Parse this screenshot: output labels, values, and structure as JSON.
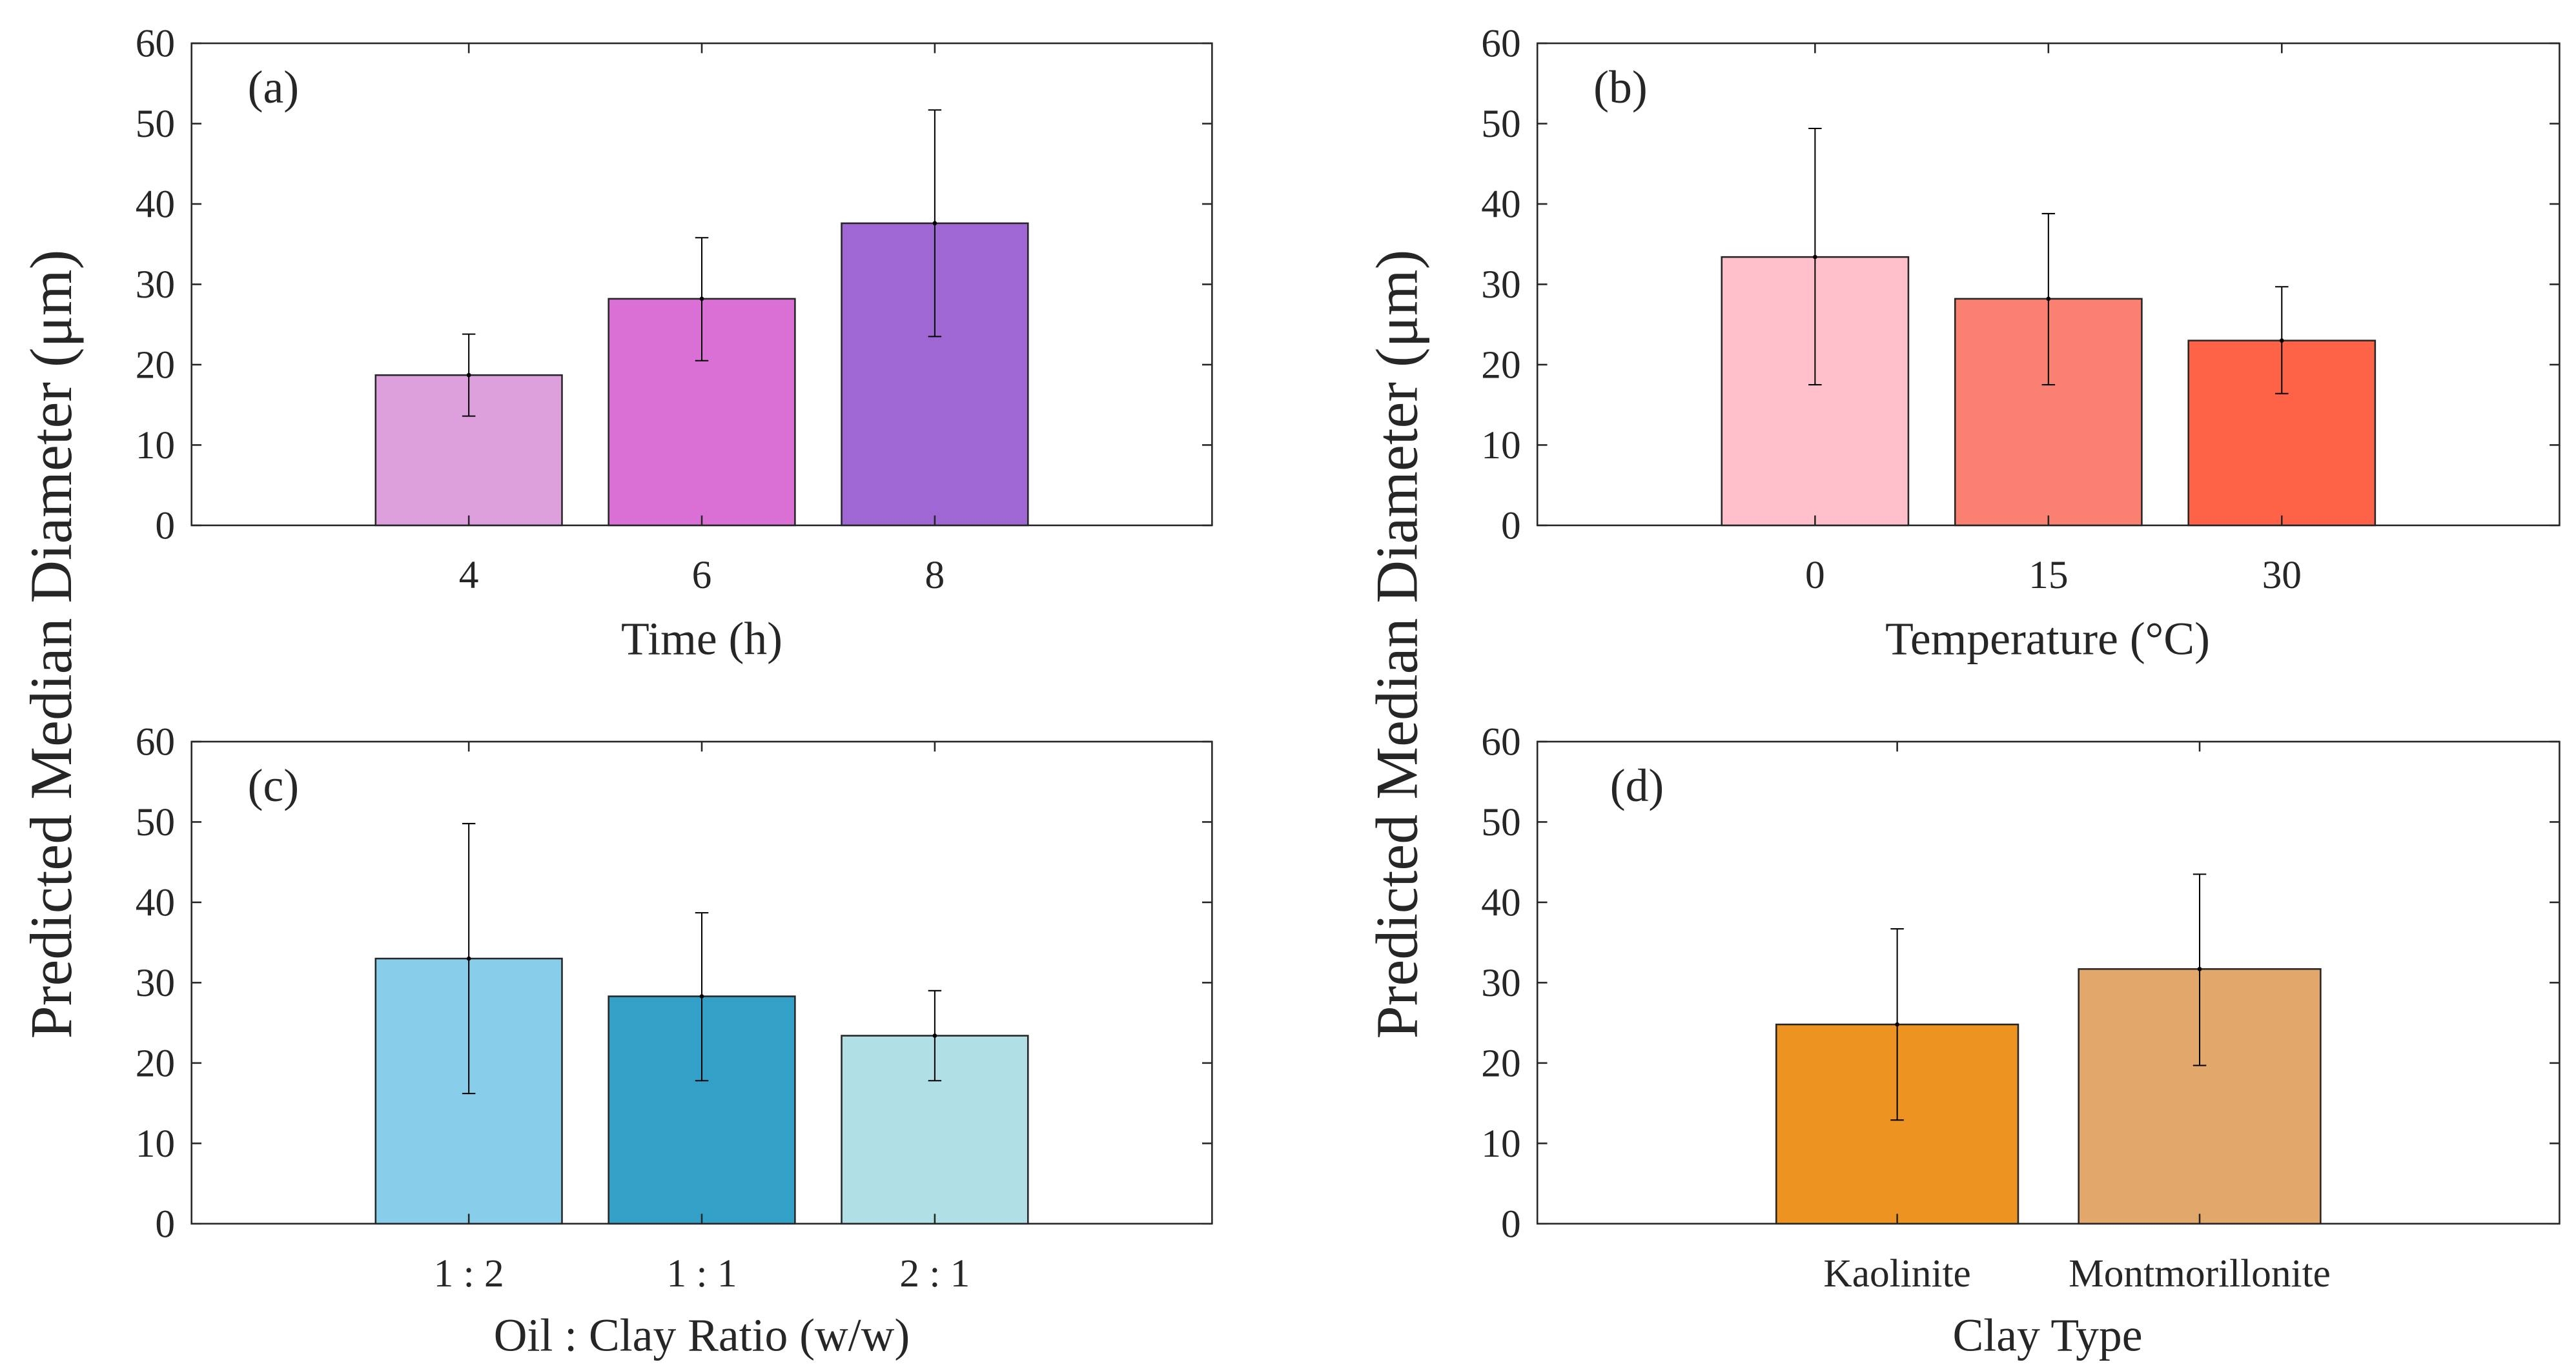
{
  "ylabel": "Predicted Median Diameter (μm)",
  "chart_data": [
    {
      "type": "bar",
      "panel": "(a)",
      "xlabel": "Time (h)",
      "ylabel": "Predicted Median Diameter (μm)",
      "ylim": [
        0,
        60
      ],
      "yticks": [
        "0",
        "10",
        "20",
        "30",
        "40",
        "50",
        "60"
      ],
      "categories": [
        "4",
        "6",
        "8"
      ],
      "values": [
        18.7,
        28.2,
        37.6
      ],
      "error_low": [
        13.6,
        20.5,
        23.5
      ],
      "error_high": [
        23.8,
        35.8,
        51.7
      ],
      "colors": [
        "#dda0dd",
        "#da70d6",
        "#9f67d4"
      ]
    },
    {
      "type": "bar",
      "panel": "(b)",
      "xlabel": "Temperature (°C)",
      "ylabel": "Predicted Median Diameter (μm)",
      "ylim": [
        0,
        60
      ],
      "yticks": [
        "0",
        "10",
        "20",
        "30",
        "40",
        "50",
        "60"
      ],
      "categories": [
        "0",
        "15",
        "30"
      ],
      "values": [
        33.4,
        28.2,
        23.0
      ],
      "error_low": [
        17.5,
        17.5,
        16.4
      ],
      "error_high": [
        49.4,
        38.8,
        29.7
      ],
      "colors": [
        "#ffc0cb",
        "#fa8072",
        "#ff6347"
      ]
    },
    {
      "type": "bar",
      "panel": "(c)",
      "xlabel": "Oil : Clay Ratio (w/w)",
      "ylabel": "Predicted Median Diameter (μm)",
      "ylim": [
        0,
        60
      ],
      "yticks": [
        "0",
        "10",
        "20",
        "30",
        "40",
        "50",
        "60"
      ],
      "categories": [
        "1 : 2",
        "1 : 1",
        "2 : 1"
      ],
      "values": [
        33.0,
        28.3,
        23.4
      ],
      "error_low": [
        16.2,
        17.8,
        17.8
      ],
      "error_high": [
        49.8,
        38.7,
        29.0
      ],
      "colors": [
        "#87ceeb",
        "#33a0c8",
        "#b0e0e6"
      ]
    },
    {
      "type": "bar",
      "panel": "(d)",
      "xlabel": "Clay Type",
      "ylabel": "Predicted Median Diameter (μm)",
      "ylim": [
        0,
        60
      ],
      "yticks": [
        "0",
        "10",
        "20",
        "30",
        "40",
        "50",
        "60"
      ],
      "categories": [
        "Kaolinite",
        "Montmorillonite"
      ],
      "values": [
        24.8,
        31.7
      ],
      "error_low": [
        12.9,
        19.7
      ],
      "error_high": [
        36.7,
        43.5
      ],
      "colors": [
        "#ec9322",
        "#e2a76b"
      ]
    }
  ]
}
